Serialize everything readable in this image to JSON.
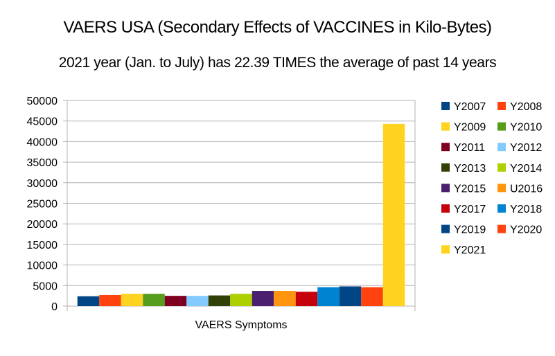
{
  "chart_data": {
    "type": "bar",
    "title": "VAERS USA (Secondary Effects of VACCINES in Kilo-Bytes)",
    "subtitle": "2021 year (Jan. to July) has 22.39 TIMES the average of past 14 years",
    "categories": [
      "VAERS Symptoms"
    ],
    "xlabel": "VAERS Symptoms",
    "ylabel": "",
    "ylim": [
      0,
      50000
    ],
    "yticks": [
      0,
      5000,
      10000,
      15000,
      20000,
      25000,
      30000,
      35000,
      40000,
      45000,
      50000
    ],
    "grid": true,
    "legend_position": "right",
    "series": [
      {
        "name": "Y2007",
        "color": "#004586",
        "values": [
          2400
        ]
      },
      {
        "name": "Y2008",
        "color": "#ff420e",
        "values": [
          2700
        ]
      },
      {
        "name": "Y2009",
        "color": "#ffd320",
        "values": [
          3000
        ]
      },
      {
        "name": "Y2010",
        "color": "#579d1c",
        "values": [
          3000
        ]
      },
      {
        "name": "Y2011",
        "color": "#7e0021",
        "values": [
          2500
        ]
      },
      {
        "name": "Y2012",
        "color": "#83caff",
        "values": [
          2500
        ]
      },
      {
        "name": "Y2013",
        "color": "#314004",
        "values": [
          2600
        ]
      },
      {
        "name": "Y2014",
        "color": "#aecf00",
        "values": [
          3000
        ]
      },
      {
        "name": "Y2015",
        "color": "#4b1f6f",
        "values": [
          3700
        ]
      },
      {
        "name": "U2016",
        "color": "#ff950e",
        "values": [
          3700
        ]
      },
      {
        "name": "Y2017",
        "color": "#c5000b",
        "values": [
          3500
        ]
      },
      {
        "name": "Y2018",
        "color": "#0084d1",
        "values": [
          4600
        ]
      },
      {
        "name": "Y2019",
        "color": "#004586",
        "values": [
          4800
        ]
      },
      {
        "name": "Y2020",
        "color": "#ff420e",
        "values": [
          4600
        ]
      },
      {
        "name": "Y2021",
        "color": "#ffd320",
        "values": [
          44300
        ]
      }
    ]
  }
}
